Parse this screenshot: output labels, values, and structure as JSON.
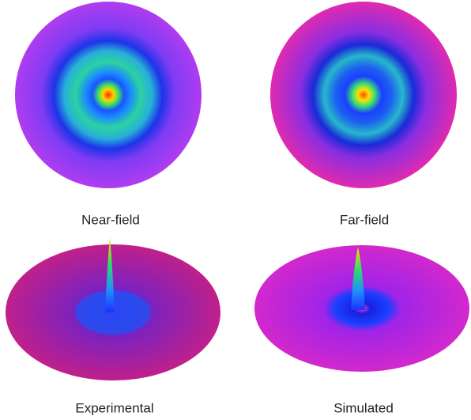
{
  "panels": [
    {
      "caption": "Near-field"
    },
    {
      "caption": "Far-field"
    },
    {
      "caption": "Experimental"
    },
    {
      "caption": "Simulated"
    }
  ]
}
